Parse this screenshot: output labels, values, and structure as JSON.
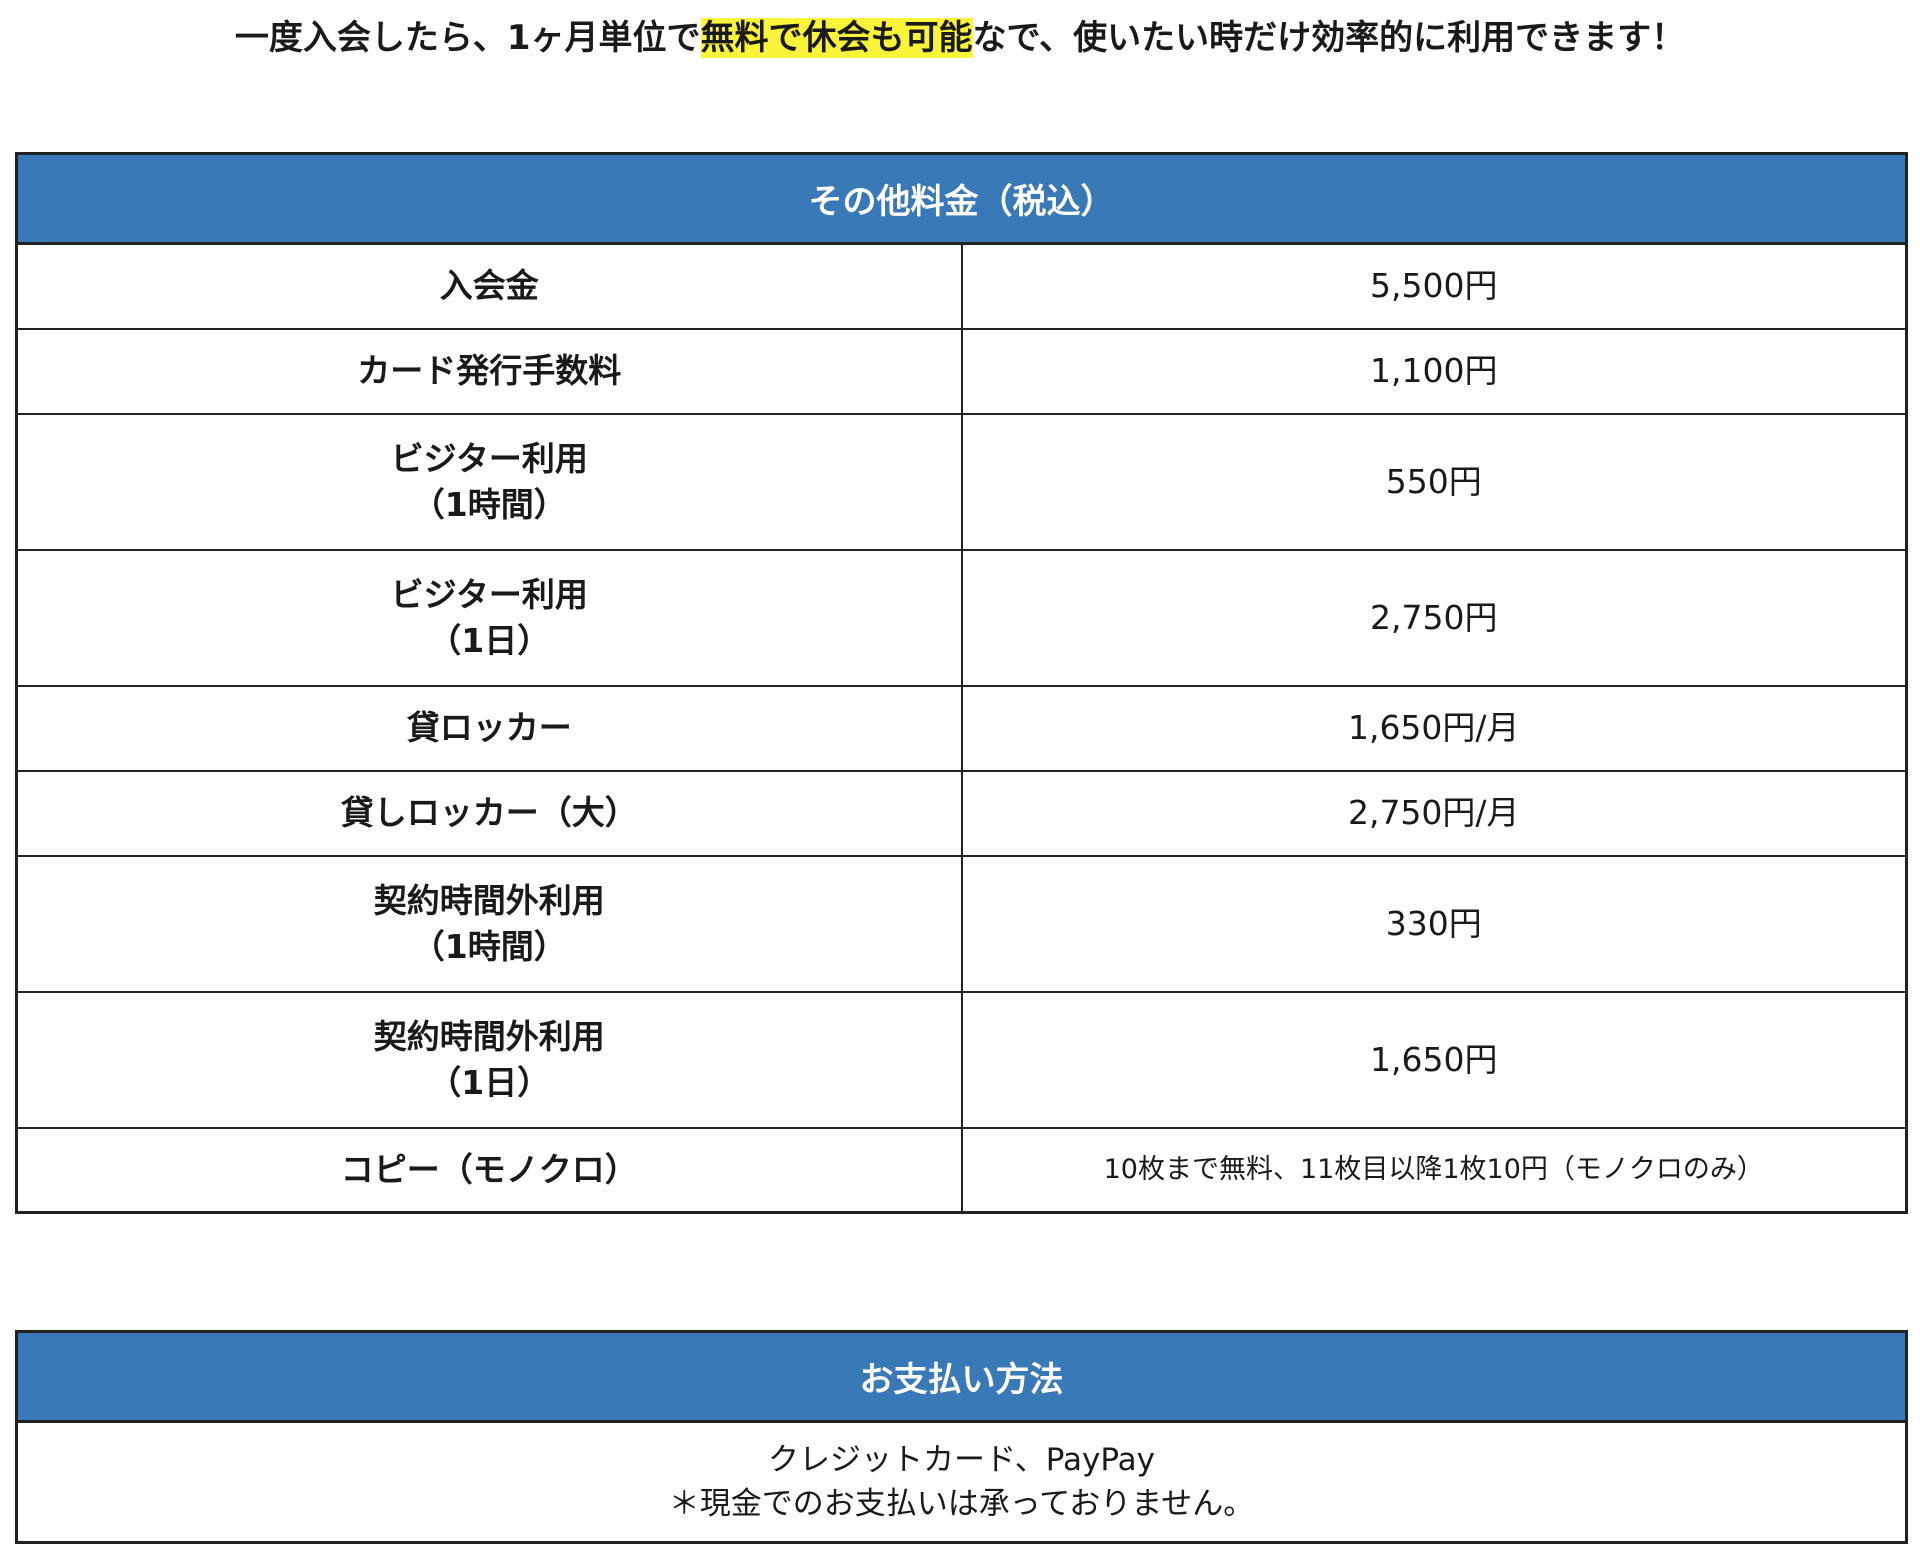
{
  "headline": {
    "before": "一度入会したら、1ヶ月単位で",
    "highlight": "無料で休会も可能",
    "after": "なで、使いたい時だけ効率的に利用できます！",
    "highlight_color": "#fbf53a"
  },
  "fees_table": {
    "title": "その他料金（税込）",
    "header_color": "#3a79b8",
    "rows": [
      {
        "label": "入会金",
        "sub": "",
        "value": "5,500円"
      },
      {
        "label": "カード発行手数料",
        "sub": "",
        "value": "1,100円"
      },
      {
        "label": "ビジター利用",
        "sub": "（1時間）",
        "value": "550円"
      },
      {
        "label": "ビジター利用",
        "sub": "（1日）",
        "value": "2,750円"
      },
      {
        "label": "貸ロッカー",
        "sub": "",
        "value": "1,650円/月"
      },
      {
        "label": "貸しロッカー（大）",
        "sub": "",
        "value": "2,750円/月"
      },
      {
        "label": "契約時間外利用",
        "sub": "（1時間）",
        "value": "330円"
      },
      {
        "label": "契約時間外利用",
        "sub": "（1日）",
        "value": "1,650円"
      },
      {
        "label": "コピー（モノクロ）",
        "sub": "",
        "value": "10枚まで無料、11枚目以降1枚10円（モノクロのみ）"
      }
    ]
  },
  "payment_table": {
    "title": "お支払い方法",
    "line1": "クレジットカード、PayPay",
    "line2": "＊現金でのお支払いは承っておりません。"
  }
}
